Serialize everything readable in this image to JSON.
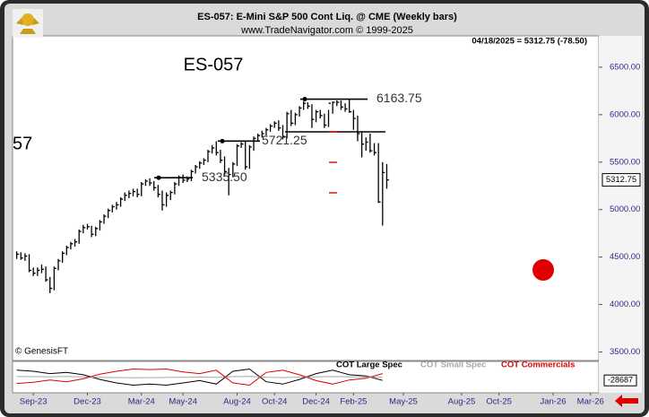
{
  "header": {
    "title": "ES-057:  E-Mini S&P 500 Cont Liq. @ CME  (Weekly bars)",
    "copyright": "www.TradeNavigator.com © 1999-2025",
    "last_quote": "04/18/2025 = 5312.75 (-78.50)"
  },
  "chart_data": [
    {
      "type": "ohlc",
      "title": "ES-057",
      "side_label": "57",
      "watermark": "© GenesisFT",
      "color": "#000000",
      "high": [
        4560,
        4550,
        4540,
        4530,
        4390,
        4390,
        4420,
        4400,
        4290,
        4400,
        4480,
        4560,
        4620,
        4660,
        4690,
        4790,
        4840,
        4850,
        4830,
        4820,
        4890,
        4950,
        5010,
        5050,
        5080,
        5130,
        5180,
        5200,
        5220,
        5220,
        5290,
        5320,
        5330,
        5300,
        5260,
        5200,
        5180,
        5200,
        5290,
        5360,
        5370,
        5350,
        5420,
        5470,
        5510,
        5540,
        5630,
        5680,
        5720,
        5630,
        5560,
        5440,
        5500,
        5690,
        5710,
        5720,
        5680,
        5770,
        5800,
        5830,
        5860,
        5900,
        5930,
        5940,
        5890,
        6030,
        6050,
        6020,
        6090,
        6140,
        6130,
        6110,
        6050,
        6050,
        6010,
        6050,
        6140,
        6150,
        6150,
        6120,
        6163.75,
        6050,
        5990,
        5820,
        5760,
        5800,
        5700,
        5700,
        5500,
        5480
      ],
      "low": [
        4480,
        4470,
        4460,
        4340,
        4300,
        4300,
        4330,
        4240,
        4120,
        4150,
        4360,
        4440,
        4520,
        4580,
        4610,
        4640,
        4750,
        4790,
        4710,
        4720,
        4780,
        4850,
        4910,
        4970,
        5000,
        5030,
        5090,
        5120,
        5140,
        5130,
        5140,
        5250,
        5250,
        5200,
        5130,
        4990,
        5030,
        5100,
        5160,
        5250,
        5280,
        5290,
        5300,
        5380,
        5430,
        5470,
        5500,
        5590,
        5570,
        5490,
        5360,
        5150,
        5340,
        5460,
        5650,
        5420,
        5430,
        5620,
        5730,
        5760,
        5780,
        5820,
        5860,
        5830,
        5740,
        5750,
        5880,
        5890,
        5980,
        6050,
        6060,
        5860,
        5920,
        5960,
        5860,
        5870,
        6010,
        6090,
        6050,
        6030,
        6020,
        5840,
        5720,
        5550,
        5620,
        5600,
        5570,
        5070,
        4832,
        5220
      ],
      "close": [
        4530,
        4490,
        4510,
        4360,
        4330,
        4360,
        4370,
        4260,
        4170,
        4380,
        4460,
        4540,
        4600,
        4640,
        4660,
        4770,
        4810,
        4820,
        4740,
        4800,
        4870,
        4930,
        4990,
        5030,
        5050,
        5110,
        5150,
        5170,
        5190,
        5160,
        5270,
        5300,
        5280,
        5230,
        5160,
        5050,
        5150,
        5180,
        5270,
        5340,
        5310,
        5320,
        5400,
        5450,
        5490,
        5520,
        5610,
        5650,
        5600,
        5520,
        5400,
        5370,
        5480,
        5670,
        5690,
        5450,
        5660,
        5750,
        5780,
        5800,
        5840,
        5880,
        5910,
        5860,
        5770,
        6010,
        5910,
        6000,
        6070,
        6120,
        6090,
        5950,
        6030,
        5990,
        5890,
        6120,
        6130,
        6130,
        6080,
        6060,
        6030,
        5960,
        5800,
        5690,
        5710,
        5620,
        5600,
        5080,
        5390,
        5312.75
      ],
      "levels": [
        6163.75,
        5721.25,
        {
          "value": 5335.5,
          "label": "5335.50"
        }
      ],
      "last_price": 5312.75,
      "xlim": [
        -1,
        140
      ],
      "ylim": [
        3410,
        6830
      ],
      "yticks": [
        {
          "value": 3500,
          "label": "3500.00"
        },
        {
          "value": 4000,
          "label": "4000.00"
        },
        {
          "value": 4500,
          "label": "4500.00"
        },
        {
          "value": 5000,
          "label": "5000.00"
        },
        {
          "value": 5500,
          "label": "5500.00"
        },
        {
          "value": 6000,
          "label": "6000.00"
        },
        {
          "value": 6500,
          "label": "6500.00"
        }
      ]
    },
    {
      "type": "line",
      "x": [
        0,
        4,
        8,
        12,
        16,
        20,
        24,
        28,
        32,
        36,
        40,
        44,
        48,
        52,
        56,
        60,
        64,
        68,
        72,
        76,
        80,
        84,
        88
      ],
      "series": [
        {
          "name": "COT Large Spec",
          "color": "#000000",
          "values": [
            60000,
            50000,
            30000,
            40000,
            20000,
            -20000,
            -50000,
            -70000,
            -60000,
            -70000,
            -50000,
            -30000,
            -60000,
            50000,
            70000,
            -40000,
            -60000,
            -20000,
            30000,
            60000,
            20000,
            10000,
            -28687
          ]
        },
        {
          "name": "COT Small Spec",
          "color": "#a8a8a8",
          "values": [
            5000,
            4000,
            3000,
            6000,
            2000,
            -2000,
            -4000,
            -6000,
            -5000,
            -3000,
            -2000,
            1000,
            -3000,
            4000,
            6000,
            -2000,
            -4000,
            -1000,
            2000,
            5000,
            3000,
            1000,
            -2000
          ]
        },
        {
          "name": "COT Commercials",
          "color": "#e00000",
          "values": [
            -55000,
            -45000,
            -25000,
            -40000,
            -15000,
            25000,
            50000,
            70000,
            65000,
            70000,
            45000,
            30000,
            60000,
            -50000,
            -70000,
            40000,
            60000,
            20000,
            -30000,
            -60000,
            -25000,
            -10000,
            30000
          ]
        }
      ],
      "last_value": -28687,
      "xlim": [
        -1,
        140
      ],
      "ylim": [
        -120000,
        120000
      ],
      "xticks": [
        {
          "value": 4,
          "label": "Sep-23"
        },
        {
          "value": 17,
          "label": "Dec-23"
        },
        {
          "value": 30,
          "label": "Mar-24"
        },
        {
          "value": 40,
          "label": "May-24"
        },
        {
          "value": 53,
          "label": "Aug-24"
        },
        {
          "value": 62,
          "label": "Oct-24"
        },
        {
          "value": 72,
          "label": "Dec-24"
        },
        {
          "value": 81,
          "label": "Feb-25"
        },
        {
          "value": 93,
          "label": "May-25"
        },
        {
          "value": 107,
          "label": "Aug-25"
        },
        {
          "value": 116,
          "label": "Oct-25"
        },
        {
          "value": 129,
          "label": "Jan-26"
        },
        {
          "value": 138,
          "label": "Mar-26"
        }
      ]
    }
  ]
}
